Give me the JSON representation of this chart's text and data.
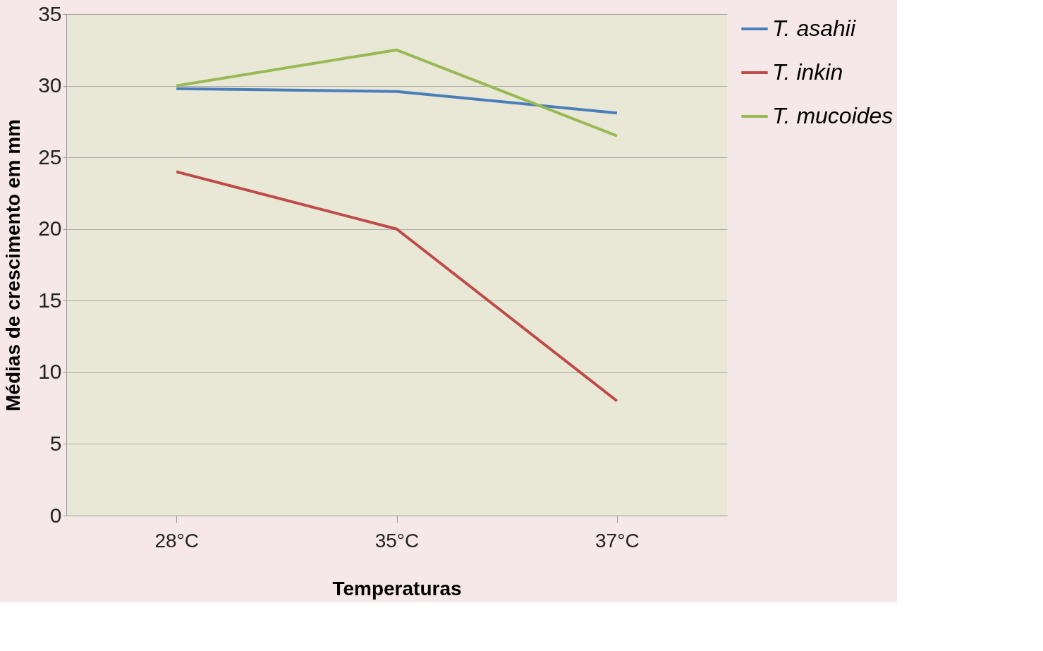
{
  "chart_data": {
    "type": "line",
    "xlabel": "Temperaturas",
    "ylabel": "Médias de crescimento em mm",
    "categories": [
      "28°C",
      "35°C",
      "37°C"
    ],
    "series": [
      {
        "name": "T. asahii",
        "color": "#4a7ebb",
        "values": [
          29.8,
          29.6,
          28.1
        ]
      },
      {
        "name": "T. inkin",
        "color": "#be4b48",
        "values": [
          24,
          20,
          8
        ]
      },
      {
        "name": "T. mucoides",
        "color": "#98b954",
        "values": [
          30,
          32.5,
          26.5
        ]
      }
    ],
    "ylim": [
      0,
      35
    ],
    "yticks": [
      0,
      5,
      10,
      15,
      20,
      25,
      30,
      35
    ],
    "grid": "y",
    "legend": "right",
    "marker": "none",
    "line_style": "solid"
  }
}
